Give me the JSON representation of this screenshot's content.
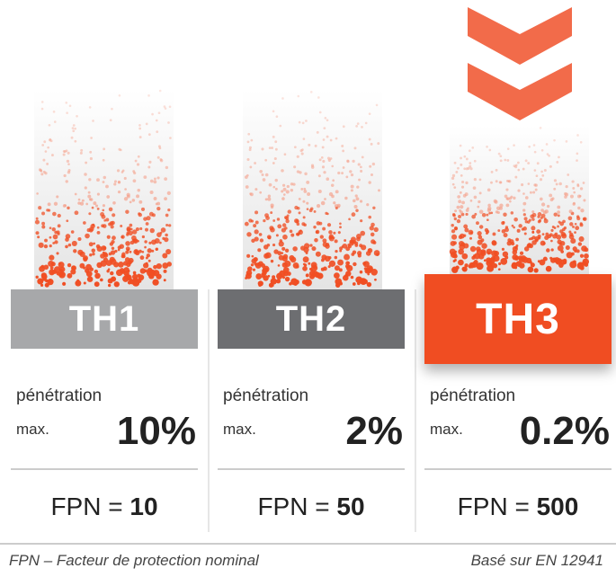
{
  "columns": [
    {
      "label": "TH1",
      "penetration_label": "pénétration",
      "max_label": "max.",
      "penetration": "10%",
      "fpn_label": "FPN =",
      "fpn": "10"
    },
    {
      "label": "TH2",
      "penetration_label": "pénétration",
      "max_label": "max.",
      "penetration": "2%",
      "fpn_label": "FPN =",
      "fpn": "50"
    },
    {
      "label": "TH3",
      "penetration_label": "pénétration",
      "max_label": "max.",
      "penetration": "0.2%",
      "fpn_label": "FPN =",
      "fpn": "500"
    }
  ],
  "footer": {
    "left": "FPN – Facteur de protection nominal",
    "right": "Basé sur EN 12941"
  }
}
